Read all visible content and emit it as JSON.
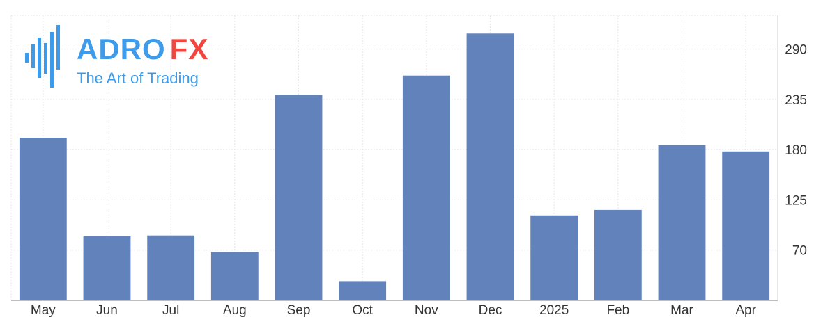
{
  "logo": {
    "word_left": "ADRO",
    "word_right": "FX",
    "tagline": "The Art of Trading",
    "color_left": "#3d9be9",
    "color_right": "#f0463f"
  },
  "chart_data": {
    "type": "bar",
    "categories": [
      "May",
      "Jun",
      "Jul",
      "Aug",
      "Sep",
      "Oct",
      "Nov",
      "Dec",
      "2025",
      "Feb",
      "Mar",
      "Apr"
    ],
    "values": [
      193,
      85,
      86,
      68,
      240,
      36,
      261,
      307,
      108,
      114,
      185,
      178
    ],
    "title": "",
    "xlabel": "",
    "ylabel": "",
    "yticks": [
      70,
      125,
      180,
      235,
      290
    ],
    "ylim": [
      15,
      327
    ],
    "y_axis_side": "right",
    "grid": true,
    "bar_color": "#6282bb"
  }
}
